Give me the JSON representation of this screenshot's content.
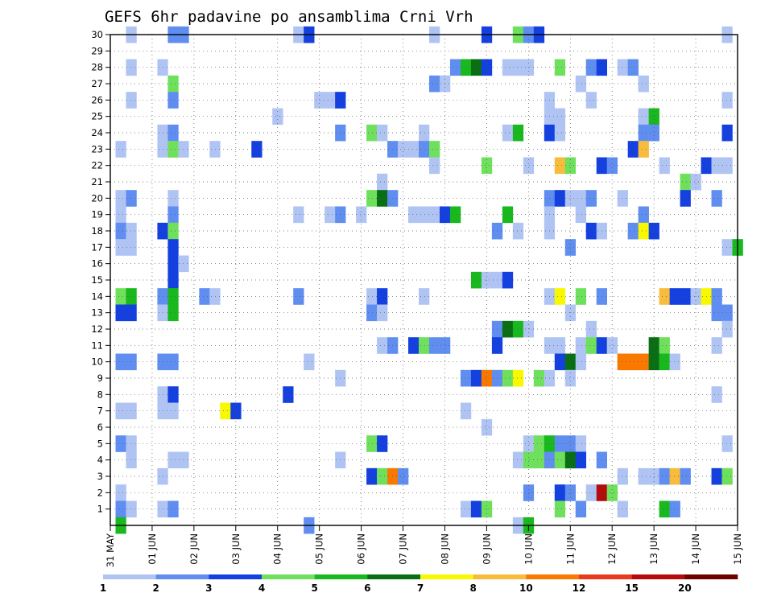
{
  "chart_data": {
    "type": "heatmap",
    "title": "GEFS 6hr padavine po ansamblima Crni Vrh",
    "x_ticks": [
      "31 MAY",
      "01 JUN",
      "02 JUN",
      "03 JUN",
      "04 JUN",
      "05 JUN",
      "06 JUN",
      "07 JUN",
      "08 JUN",
      "09 JUN",
      "10 JUN",
      "11 JUN",
      "12 JUN",
      "13 JUN",
      "14 JUN",
      "15 JUN"
    ],
    "x_tick_positions": [
      0,
      1,
      2,
      3,
      4,
      5,
      6,
      7,
      8,
      9,
      10,
      11,
      12,
      13,
      14,
      15
    ],
    "x_range": [
      0,
      15
    ],
    "y_ticks": [
      "1",
      "2",
      "3",
      "4",
      "5",
      "6",
      "7",
      "8",
      "9",
      "10",
      "11",
      "12",
      "13",
      "14",
      "15",
      "16",
      "17",
      "18",
      "19",
      "20",
      "21",
      "22",
      "23",
      "24",
      "25",
      "26",
      "27",
      "28",
      "29",
      "30"
    ],
    "y_range": [
      0,
      30
    ],
    "grid": "dotted",
    "colorbar": {
      "levels": [
        "1",
        "2",
        "3",
        "4",
        "5",
        "6",
        "7",
        "8",
        "10",
        "12",
        "15",
        "20"
      ],
      "colors": [
        "#b0c4f4",
        "#5f8ef0",
        "#1440e0",
        "#6fe05c",
        "#19b81e",
        "#0a6f14",
        "#f8f800",
        "#f8bc3c",
        "#f87800",
        "#e83a1e",
        "#b40c0c",
        "#6e0000"
      ]
    },
    "cells": [
      [
        0.5,
        30,
        0
      ],
      [
        1.5,
        30,
        1
      ],
      [
        1.75,
        30,
        1
      ],
      [
        4.5,
        30,
        0
      ],
      [
        4.75,
        30,
        2
      ],
      [
        7.75,
        30,
        0
      ],
      [
        9.0,
        30,
        2
      ],
      [
        9.75,
        30,
        3
      ],
      [
        10.0,
        30,
        1
      ],
      [
        10.25,
        30,
        2
      ],
      [
        14.75,
        30,
        0
      ],
      [
        0.5,
        28,
        0
      ],
      [
        1.25,
        28,
        0
      ],
      [
        8.25,
        28,
        1
      ],
      [
        8.5,
        28,
        4
      ],
      [
        8.75,
        28,
        5
      ],
      [
        9.0,
        28,
        2
      ],
      [
        9.5,
        28,
        0
      ],
      [
        9.75,
        28,
        0
      ],
      [
        10.0,
        28,
        0
      ],
      [
        10.75,
        28,
        3
      ],
      [
        11.5,
        28,
        1
      ],
      [
        11.75,
        28,
        2
      ],
      [
        12.25,
        28,
        0
      ],
      [
        12.5,
        28,
        1
      ],
      [
        1.5,
        27,
        3
      ],
      [
        7.75,
        27,
        1
      ],
      [
        8.0,
        27,
        0
      ],
      [
        11.25,
        27,
        0
      ],
      [
        12.75,
        27,
        0
      ],
      [
        0.5,
        26,
        0
      ],
      [
        1.5,
        26,
        1
      ],
      [
        5.0,
        26,
        0
      ],
      [
        5.25,
        26,
        0
      ],
      [
        5.5,
        26,
        2
      ],
      [
        10.5,
        26,
        0
      ],
      [
        11.5,
        26,
        0
      ],
      [
        14.75,
        26,
        0
      ],
      [
        4.0,
        25,
        0
      ],
      [
        10.5,
        25,
        0
      ],
      [
        10.75,
        25,
        0
      ],
      [
        12.75,
        25,
        0
      ],
      [
        13.0,
        25,
        4
      ],
      [
        1.25,
        24,
        0
      ],
      [
        1.5,
        24,
        1
      ],
      [
        5.5,
        24,
        1
      ],
      [
        6.25,
        24,
        3
      ],
      [
        6.5,
        24,
        0
      ],
      [
        7.5,
        24,
        0
      ],
      [
        9.5,
        24,
        0
      ],
      [
        9.75,
        24,
        4
      ],
      [
        10.5,
        24,
        2
      ],
      [
        10.75,
        24,
        0
      ],
      [
        12.75,
        24,
        1
      ],
      [
        13.0,
        24,
        1
      ],
      [
        14.75,
        24,
        2
      ],
      [
        0.25,
        23,
        0
      ],
      [
        1.25,
        23,
        0
      ],
      [
        1.5,
        23,
        3
      ],
      [
        1.75,
        23,
        0
      ],
      [
        2.5,
        23,
        0
      ],
      [
        3.5,
        23,
        2
      ],
      [
        6.75,
        23,
        1
      ],
      [
        7.0,
        23,
        0
      ],
      [
        7.25,
        23,
        0
      ],
      [
        7.5,
        23,
        1
      ],
      [
        7.75,
        23,
        3
      ],
      [
        12.5,
        23,
        2
      ],
      [
        12.75,
        23,
        7
      ],
      [
        7.75,
        22,
        0
      ],
      [
        9.0,
        22,
        3
      ],
      [
        10.0,
        22,
        0
      ],
      [
        10.75,
        22,
        7
      ],
      [
        11.0,
        22,
        3
      ],
      [
        11.75,
        22,
        2
      ],
      [
        12.0,
        22,
        1
      ],
      [
        13.25,
        22,
        0
      ],
      [
        14.25,
        22,
        2
      ],
      [
        14.5,
        22,
        0
      ],
      [
        14.75,
        22,
        0
      ],
      [
        6.5,
        21,
        0
      ],
      [
        13.75,
        21,
        3
      ],
      [
        14.0,
        21,
        0
      ],
      [
        0.25,
        20,
        0
      ],
      [
        0.5,
        20,
        1
      ],
      [
        1.5,
        20,
        0
      ],
      [
        6.25,
        20,
        3
      ],
      [
        6.5,
        20,
        5
      ],
      [
        6.75,
        20,
        1
      ],
      [
        10.5,
        20,
        1
      ],
      [
        10.75,
        20,
        2
      ],
      [
        11.0,
        20,
        0
      ],
      [
        11.25,
        20,
        0
      ],
      [
        11.5,
        20,
        1
      ],
      [
        12.25,
        20,
        0
      ],
      [
        13.75,
        20,
        2
      ],
      [
        14.5,
        20,
        1
      ],
      [
        0.25,
        19,
        0
      ],
      [
        1.5,
        19,
        1
      ],
      [
        4.5,
        19,
        0
      ],
      [
        5.25,
        19,
        0
      ],
      [
        5.5,
        19,
        1
      ],
      [
        6.0,
        19,
        0
      ],
      [
        7.25,
        19,
        0
      ],
      [
        7.5,
        19,
        0
      ],
      [
        7.75,
        19,
        0
      ],
      [
        8.0,
        19,
        2
      ],
      [
        8.25,
        19,
        4
      ],
      [
        9.5,
        19,
        4
      ],
      [
        10.5,
        19,
        0
      ],
      [
        11.25,
        19,
        0
      ],
      [
        12.75,
        19,
        1
      ],
      [
        0.25,
        18,
        1
      ],
      [
        0.5,
        18,
        0
      ],
      [
        1.25,
        18,
        2
      ],
      [
        1.5,
        18,
        3
      ],
      [
        9.25,
        18,
        1
      ],
      [
        9.75,
        18,
        0
      ],
      [
        10.5,
        18,
        0
      ],
      [
        11.5,
        18,
        2
      ],
      [
        11.75,
        18,
        0
      ],
      [
        12.5,
        18,
        1
      ],
      [
        12.75,
        18,
        6
      ],
      [
        13.0,
        18,
        2
      ],
      [
        0.25,
        17,
        0
      ],
      [
        0.5,
        17,
        0
      ],
      [
        1.5,
        17,
        2
      ],
      [
        11.0,
        17,
        1
      ],
      [
        14.75,
        17,
        0
      ],
      [
        15.0,
        17,
        4
      ],
      [
        1.5,
        16,
        2
      ],
      [
        1.75,
        16,
        0
      ],
      [
        1.5,
        15,
        2
      ],
      [
        8.75,
        15,
        4
      ],
      [
        9.0,
        15,
        0
      ],
      [
        9.25,
        15,
        0
      ],
      [
        9.5,
        15,
        2
      ],
      [
        0.25,
        14,
        3
      ],
      [
        0.5,
        14,
        4
      ],
      [
        1.25,
        14,
        1
      ],
      [
        1.5,
        14,
        4
      ],
      [
        2.25,
        14,
        1
      ],
      [
        2.5,
        14,
        0
      ],
      [
        4.5,
        14,
        1
      ],
      [
        6.25,
        14,
        0
      ],
      [
        6.5,
        14,
        2
      ],
      [
        7.5,
        14,
        0
      ],
      [
        10.5,
        14,
        0
      ],
      [
        10.75,
        14,
        6
      ],
      [
        11.25,
        14,
        3
      ],
      [
        11.75,
        14,
        1
      ],
      [
        13.25,
        14,
        7
      ],
      [
        13.5,
        14,
        2
      ],
      [
        13.75,
        14,
        2
      ],
      [
        14.0,
        14,
        0
      ],
      [
        14.25,
        14,
        6
      ],
      [
        14.5,
        14,
        1
      ],
      [
        0.25,
        13,
        2
      ],
      [
        0.5,
        13,
        2
      ],
      [
        1.25,
        13,
        0
      ],
      [
        1.5,
        13,
        4
      ],
      [
        6.25,
        13,
        1
      ],
      [
        6.5,
        13,
        0
      ],
      [
        11.0,
        13,
        0
      ],
      [
        14.5,
        13,
        1
      ],
      [
        14.75,
        13,
        1
      ],
      [
        9.25,
        12,
        1
      ],
      [
        9.5,
        12,
        5
      ],
      [
        9.75,
        12,
        4
      ],
      [
        10.0,
        12,
        0
      ],
      [
        11.5,
        12,
        0
      ],
      [
        14.75,
        12,
        0
      ],
      [
        6.5,
        11,
        0
      ],
      [
        6.75,
        11,
        1
      ],
      [
        7.25,
        11,
        2
      ],
      [
        7.5,
        11,
        3
      ],
      [
        7.75,
        11,
        1
      ],
      [
        8.0,
        11,
        1
      ],
      [
        9.25,
        11,
        2
      ],
      [
        10.5,
        11,
        0
      ],
      [
        10.75,
        11,
        0
      ],
      [
        11.25,
        11,
        0
      ],
      [
        11.5,
        11,
        3
      ],
      [
        11.75,
        11,
        2
      ],
      [
        12.0,
        11,
        0
      ],
      [
        13.0,
        11,
        5
      ],
      [
        13.25,
        11,
        3
      ],
      [
        14.5,
        11,
        0
      ],
      [
        0.25,
        10,
        1
      ],
      [
        0.5,
        10,
        1
      ],
      [
        1.25,
        10,
        1
      ],
      [
        1.5,
        10,
        1
      ],
      [
        4.75,
        10,
        0
      ],
      [
        10.75,
        10,
        2
      ],
      [
        11.0,
        10,
        5
      ],
      [
        11.25,
        10,
        0
      ],
      [
        12.25,
        10,
        8
      ],
      [
        12.5,
        10,
        8
      ],
      [
        12.75,
        10,
        8
      ],
      [
        13.0,
        10,
        5
      ],
      [
        13.25,
        10,
        4
      ],
      [
        13.5,
        10,
        0
      ],
      [
        5.5,
        9,
        0
      ],
      [
        8.5,
        9,
        1
      ],
      [
        8.75,
        9,
        2
      ],
      [
        9.0,
        9,
        8
      ],
      [
        9.25,
        9,
        1
      ],
      [
        9.5,
        9,
        3
      ],
      [
        9.75,
        9,
        6
      ],
      [
        10.25,
        9,
        3
      ],
      [
        10.5,
        9,
        0
      ],
      [
        11.0,
        9,
        0
      ],
      [
        1.25,
        8,
        0
      ],
      [
        1.5,
        8,
        2
      ],
      [
        4.25,
        8,
        2
      ],
      [
        14.5,
        8,
        0
      ],
      [
        0.25,
        7,
        0
      ],
      [
        0.5,
        7,
        0
      ],
      [
        1.25,
        7,
        0
      ],
      [
        1.5,
        7,
        0
      ],
      [
        2.75,
        7,
        6
      ],
      [
        3.0,
        7,
        2
      ],
      [
        8.5,
        7,
        0
      ],
      [
        9.0,
        6,
        0
      ],
      [
        0.25,
        5,
        1
      ],
      [
        0.5,
        5,
        0
      ],
      [
        6.25,
        5,
        3
      ],
      [
        6.5,
        5,
        2
      ],
      [
        10.0,
        5,
        0
      ],
      [
        10.25,
        5,
        3
      ],
      [
        10.5,
        5,
        4
      ],
      [
        10.75,
        5,
        1
      ],
      [
        11.0,
        5,
        1
      ],
      [
        11.25,
        5,
        0
      ],
      [
        14.75,
        5,
        0
      ],
      [
        0.5,
        4,
        0
      ],
      [
        1.5,
        4,
        0
      ],
      [
        1.75,
        4,
        0
      ],
      [
        5.5,
        4,
        0
      ],
      [
        9.75,
        4,
        0
      ],
      [
        10.0,
        4,
        3
      ],
      [
        10.25,
        4,
        3
      ],
      [
        10.5,
        4,
        1
      ],
      [
        10.75,
        4,
        3
      ],
      [
        11.0,
        4,
        5
      ],
      [
        11.25,
        4,
        2
      ],
      [
        11.75,
        4,
        1
      ],
      [
        1.25,
        3,
        0
      ],
      [
        6.25,
        3,
        2
      ],
      [
        6.5,
        3,
        3
      ],
      [
        6.75,
        3,
        8
      ],
      [
        7.0,
        3,
        1
      ],
      [
        12.25,
        3,
        0
      ],
      [
        12.75,
        3,
        0
      ],
      [
        13.0,
        3,
        0
      ],
      [
        13.25,
        3,
        1
      ],
      [
        13.5,
        3,
        7
      ],
      [
        13.75,
        3,
        1
      ],
      [
        14.5,
        3,
        2
      ],
      [
        14.75,
        3,
        3
      ],
      [
        0.25,
        2,
        0
      ],
      [
        10.0,
        2,
        1
      ],
      [
        10.75,
        2,
        2
      ],
      [
        11.0,
        2,
        1
      ],
      [
        11.5,
        2,
        0
      ],
      [
        11.75,
        2,
        10
      ],
      [
        12.0,
        2,
        3
      ],
      [
        0.25,
        1,
        1
      ],
      [
        0.5,
        1,
        0
      ],
      [
        1.25,
        1,
        0
      ],
      [
        1.5,
        1,
        1
      ],
      [
        8.5,
        1,
        0
      ],
      [
        8.75,
        1,
        2
      ],
      [
        9.0,
        1,
        3
      ],
      [
        10.75,
        1,
        3
      ],
      [
        11.25,
        1,
        1
      ],
      [
        12.25,
        1,
        0
      ],
      [
        13.25,
        1,
        4
      ],
      [
        13.5,
        1,
        1
      ],
      [
        0.25,
        0,
        4
      ],
      [
        4.75,
        0,
        1
      ],
      [
        9.75,
        0,
        0
      ],
      [
        10.0,
        0,
        4
      ]
    ]
  }
}
